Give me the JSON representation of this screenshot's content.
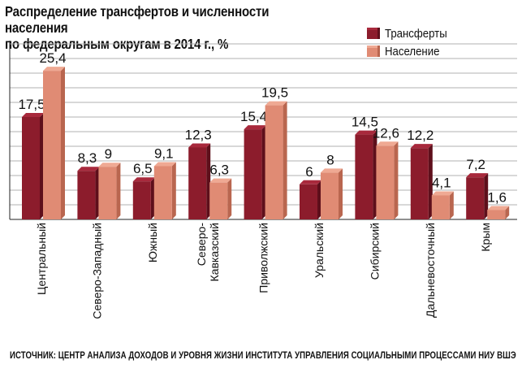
{
  "title_line1": "Распределение трансфертов и численности населения",
  "title_line2": "по федеральным округам в 2014 г., %",
  "source": "ИСТОЧНИК: ЦЕНТР АНАЛИЗА ДОХОДОВ И УРОВНЯ ЖИЗНИ ИНСТИТУТА УПРАВЛЕНИЯ СОЦИАЛЬНЫМИ ПРОЦЕССАМИ НИУ ВШЭ",
  "colors": {
    "transfers_face": "#8c1c2c",
    "transfers_top": "#a8293c",
    "transfers_side": "#5e0f1b",
    "population_face": "#e08b74",
    "population_top": "#efa993",
    "population_side": "#b9664f",
    "grid": "#b0b0b0"
  },
  "chart_data": {
    "type": "bar",
    "title": "Распределение трансфертов и численности населения по федеральным округам в 2014 г., %",
    "categories": [
      "Центральный",
      "Северо-Западный",
      "Южный",
      "Северо-Кавказский",
      "Приволжский",
      "Уральский",
      "Сибирский",
      "Дальневосточный",
      "Крым"
    ],
    "category_lines": [
      [
        "Центральный"
      ],
      [
        "Северо-Западный"
      ],
      [
        "Южный"
      ],
      [
        "Северо-",
        "Кавказский"
      ],
      [
        "Приволжский"
      ],
      [
        "Уральский"
      ],
      [
        "Сибирский"
      ],
      [
        "Дальневосточный"
      ],
      [
        "Крым"
      ]
    ],
    "series": [
      {
        "name": "Трансферты",
        "values": [
          17.5,
          8.3,
          6.5,
          12.3,
          15.4,
          6,
          14.5,
          12.2,
          7.2
        ],
        "labels": [
          "17,5",
          "8,3",
          "6,5",
          "12,3",
          "15,4",
          "6",
          "14,5",
          "12,2",
          "7,2"
        ]
      },
      {
        "name": "Население",
        "values": [
          25.4,
          9,
          9.1,
          6.3,
          19.5,
          8,
          12.6,
          4.1,
          1.6
        ],
        "labels": [
          "25,4",
          "9",
          "9,1",
          "6,3",
          "19,5",
          "8",
          "12,6",
          "4,1",
          "1,6"
        ]
      }
    ],
    "ylim": [
      0,
      30
    ],
    "ygrid_step": 2.5,
    "grid": true,
    "legend_position": "top-right",
    "xlabel": "",
    "ylabel": ""
  }
}
